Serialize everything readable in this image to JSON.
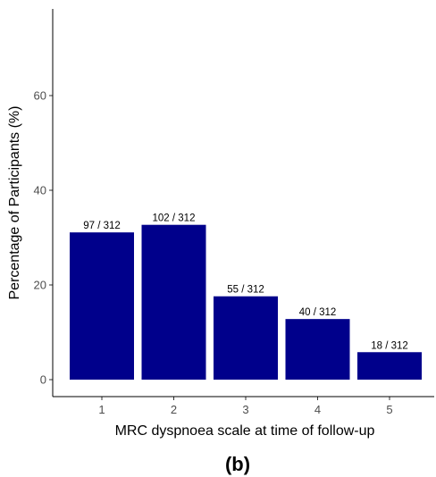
{
  "chart_data": {
    "type": "bar",
    "categories": [
      "1",
      "2",
      "3",
      "4",
      "5"
    ],
    "values": [
      31.1,
      32.7,
      17.6,
      12.8,
      5.8
    ],
    "bar_labels": [
      "97 / 312",
      "102 / 312",
      "55 / 312",
      "40 / 312",
      "18 / 312"
    ],
    "xlabel": "MRC dyspnoea scale at time of follow-up",
    "ylabel": "Percentage of Participants (%)",
    "yticks": [
      0,
      20,
      40,
      60
    ],
    "ylim": [
      0,
      78
    ],
    "grid": false,
    "bar_color": "#00008B",
    "panel_label": "(b)"
  }
}
